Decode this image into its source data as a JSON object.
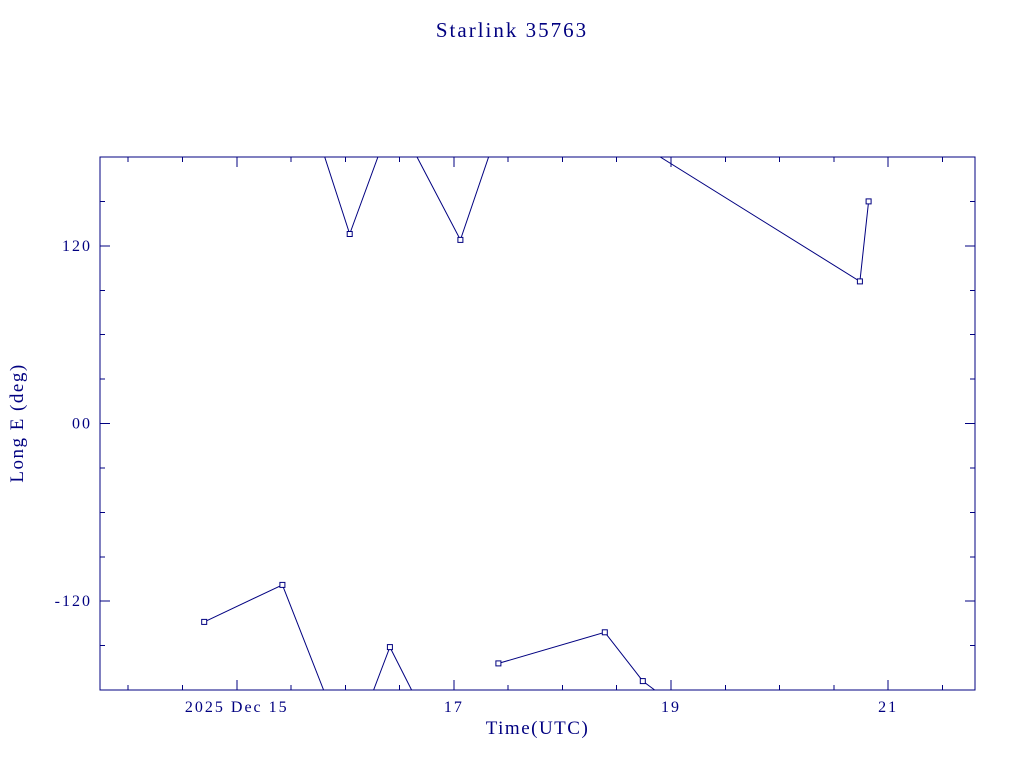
{
  "chart_data": {
    "type": "line",
    "title": "Starlink 35763",
    "xlabel": "Time(UTC)",
    "ylabel": "Long E (deg)",
    "x_units": "day of December 2025 (UTC)",
    "xlim": [
      13.74,
      21.8
    ],
    "ylim": [
      -180,
      180
    ],
    "grid": false,
    "legend": null,
    "line_color": "#000080",
    "background_color": "#ffffff",
    "xticks": {
      "major": [
        {
          "value": 15,
          "label": "2025 Dec 15"
        },
        {
          "value": 17,
          "label": "17"
        },
        {
          "value": 19,
          "label": "19"
        },
        {
          "value": 21,
          "label": "21"
        }
      ],
      "minor_step": 0.5
    },
    "yticks": {
      "major": [
        {
          "value": 120,
          "label": "120"
        },
        {
          "value": 0,
          "label": "00"
        },
        {
          "value": -120,
          "label": "-120"
        }
      ],
      "minor_step": 30
    },
    "segments": [
      {
        "points": [
          [
            14.7,
            -134
          ],
          [
            15.42,
            -109
          ],
          [
            15.8,
            -180
          ]
        ],
        "markers": [
          [
            14.7,
            -134
          ],
          [
            15.42,
            -109
          ]
        ]
      },
      {
        "points": [
          [
            15.81,
            180
          ],
          [
            16.04,
            128
          ],
          [
            16.3,
            180
          ]
        ],
        "markers": [
          [
            16.04,
            128
          ]
        ]
      },
      {
        "points": [
          [
            16.26,
            -180
          ],
          [
            16.41,
            -151
          ],
          [
            16.61,
            -180
          ]
        ],
        "markers": [
          [
            16.41,
            -151
          ]
        ]
      },
      {
        "points": [
          [
            16.66,
            180
          ],
          [
            17.06,
            124
          ],
          [
            17.32,
            180
          ]
        ],
        "markers": [
          [
            17.06,
            124
          ]
        ]
      },
      {
        "points": [
          [
            17.41,
            -162
          ],
          [
            18.39,
            -141
          ],
          [
            18.74,
            -174
          ],
          [
            18.85,
            -180
          ]
        ],
        "markers": [
          [
            17.41,
            -162
          ],
          [
            18.39,
            -141
          ],
          [
            18.74,
            -174
          ]
        ]
      },
      {
        "points": [
          [
            18.9,
            180
          ],
          [
            20.74,
            96
          ],
          [
            20.82,
            150
          ]
        ],
        "markers": [
          [
            20.74,
            96
          ],
          [
            20.82,
            150
          ]
        ]
      }
    ]
  }
}
